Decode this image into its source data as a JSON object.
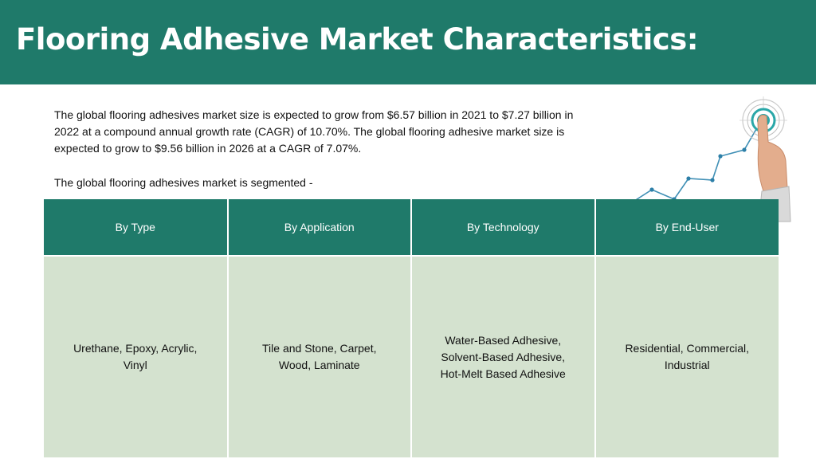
{
  "title": "Flooring Adhesive Market Characteristics:",
  "intro_text": "The global flooring adhesives market size is expected to grow from $6.57 billion in 2021 to $7.27 billion in 2022 at a compound annual growth rate (CAGR) of 10.70%. The global flooring adhesive market size is expected to grow to $9.56 billion in 2026 at a CAGR of 7.07%.",
  "segmented_text": "The global flooring adhesives market is segmented -",
  "table": {
    "headers": [
      "By Type",
      "By Application",
      "By Technology",
      "By End-User"
    ],
    "cells": [
      "Urethane, Epoxy, Acrylic, Vinyl",
      "Tile and Stone, Carpet, Wood, Laminate",
      "Water-Based Adhesive, Solvent-Based Adhesive, Hot-Melt Based Adhesive",
      "Residential, Commercial, Industrial"
    ]
  },
  "illustration": {
    "icon": "hand-touching-growth-chart-icon"
  },
  "colors": {
    "accent": "#1f7a6a",
    "cell_bg": "#d4e2cf",
    "text": "#111111"
  }
}
